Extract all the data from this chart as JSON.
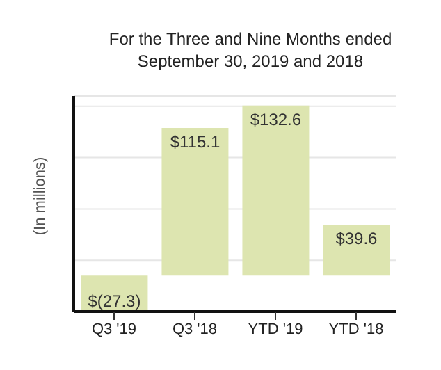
{
  "chart_data": {
    "type": "bar",
    "title": "For the Three and Nine Months ended September 30, 2019 and 2018",
    "ylabel": "(In millions)",
    "categories": [
      "Q3 '19",
      "Q3 '18",
      "YTD '19",
      "YTD '18"
    ],
    "values": [
      -27.3,
      115.1,
      132.6,
      39.6
    ],
    "color": "#dde5b0",
    "value_labels": [
      "$(27.3)",
      "$115.1",
      "$132.6",
      "$39.6"
    ],
    "ylim": [
      -28,
      140
    ],
    "yticks": [
      {
        "value": 12,
        "label": null
      },
      {
        "value": 52,
        "label": null
      },
      {
        "value": 92,
        "label": null
      },
      {
        "value": 132,
        "label": null
      }
    ],
    "grid": "y",
    "tick_labels": "x"
  }
}
